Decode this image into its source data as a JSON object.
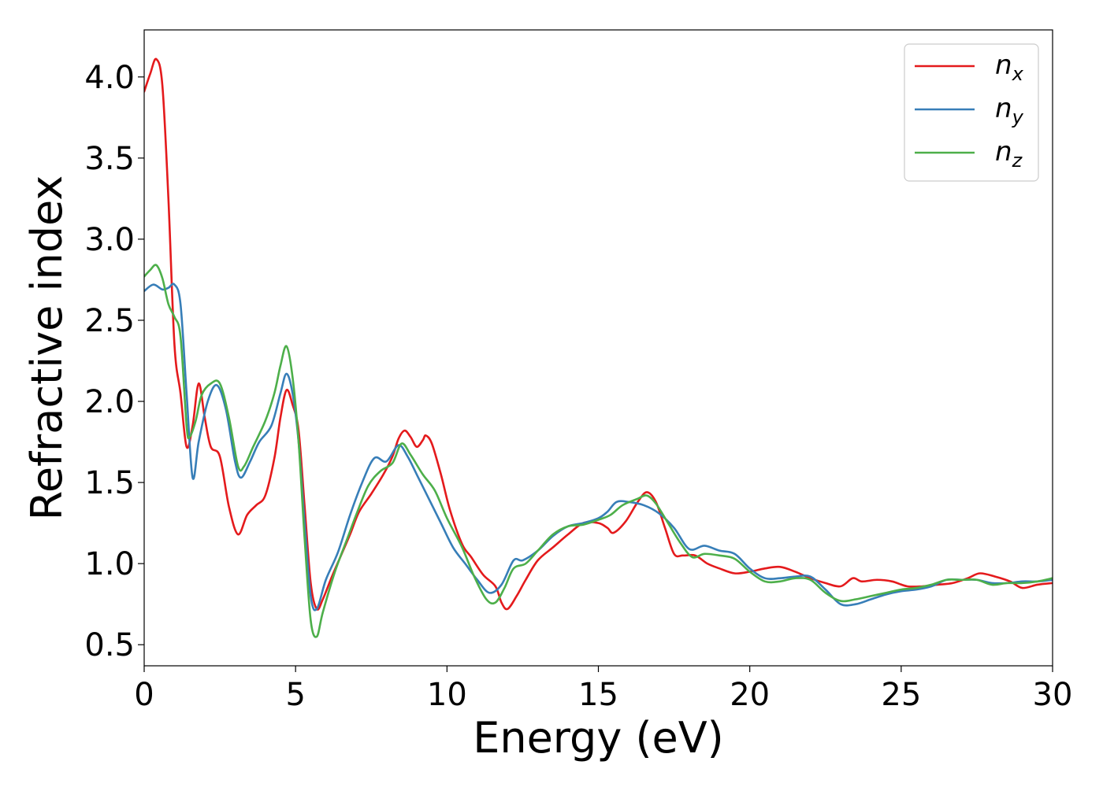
{
  "chart_data": {
    "type": "line",
    "title": "",
    "xlabel": "Energy (eV)",
    "ylabel": "Refractive index",
    "xlim": [
      0,
      30
    ],
    "ylim": [
      0.37,
      4.29
    ],
    "xticks": [
      0,
      5,
      10,
      15,
      20,
      25,
      30
    ],
    "xtick_labels": [
      "0",
      "5",
      "10",
      "15",
      "20",
      "25",
      "30"
    ],
    "yticks": [
      0.5,
      1.0,
      1.5,
      2.0,
      2.5,
      3.0,
      3.5,
      4.0
    ],
    "ytick_labels": [
      "0.5",
      "1.0",
      "1.5",
      "2.0",
      "2.5",
      "3.0",
      "3.5",
      "4.0"
    ],
    "grid": false,
    "legend_position": "top-right",
    "series": [
      {
        "name": "n",
        "subscript": "x",
        "color": "#e41a1c",
        "points": [
          [
            0.0,
            3.91
          ],
          [
            0.2,
            4.02
          ],
          [
            0.4,
            4.11
          ],
          [
            0.6,
            3.95
          ],
          [
            0.8,
            3.25
          ],
          [
            1.0,
            2.35
          ],
          [
            1.2,
            2.05
          ],
          [
            1.4,
            1.72
          ],
          [
            1.6,
            1.85
          ],
          [
            1.8,
            2.11
          ],
          [
            2.0,
            1.9
          ],
          [
            2.2,
            1.72
          ],
          [
            2.5,
            1.66
          ],
          [
            2.8,
            1.35
          ],
          [
            3.1,
            1.18
          ],
          [
            3.4,
            1.3
          ],
          [
            3.7,
            1.36
          ],
          [
            4.0,
            1.42
          ],
          [
            4.3,
            1.65
          ],
          [
            4.5,
            1.9
          ],
          [
            4.7,
            2.07
          ],
          [
            4.9,
            1.98
          ],
          [
            5.1,
            1.82
          ],
          [
            5.3,
            1.35
          ],
          [
            5.5,
            0.88
          ],
          [
            5.7,
            0.72
          ],
          [
            5.9,
            0.78
          ],
          [
            6.2,
            0.92
          ],
          [
            6.5,
            1.05
          ],
          [
            6.8,
            1.18
          ],
          [
            7.1,
            1.32
          ],
          [
            7.5,
            1.43
          ],
          [
            7.9,
            1.55
          ],
          [
            8.2,
            1.66
          ],
          [
            8.4,
            1.77
          ],
          [
            8.6,
            1.82
          ],
          [
            8.8,
            1.78
          ],
          [
            9.0,
            1.72
          ],
          [
            9.2,
            1.76
          ],
          [
            9.3,
            1.79
          ],
          [
            9.5,
            1.74
          ],
          [
            9.8,
            1.55
          ],
          [
            10.1,
            1.33
          ],
          [
            10.5,
            1.12
          ],
          [
            10.8,
            1.04
          ],
          [
            11.2,
            0.93
          ],
          [
            11.6,
            0.86
          ],
          [
            11.8,
            0.76
          ],
          [
            12.0,
            0.72
          ],
          [
            12.3,
            0.8
          ],
          [
            12.6,
            0.9
          ],
          [
            13.0,
            1.02
          ],
          [
            13.5,
            1.1
          ],
          [
            14.0,
            1.18
          ],
          [
            14.5,
            1.25
          ],
          [
            15.0,
            1.25
          ],
          [
            15.3,
            1.22
          ],
          [
            15.5,
            1.19
          ],
          [
            15.9,
            1.26
          ],
          [
            16.3,
            1.38
          ],
          [
            16.6,
            1.44
          ],
          [
            16.9,
            1.38
          ],
          [
            17.2,
            1.22
          ],
          [
            17.5,
            1.06
          ],
          [
            17.8,
            1.05
          ],
          [
            18.2,
            1.05
          ],
          [
            18.6,
            1.0
          ],
          [
            19.0,
            0.97
          ],
          [
            19.5,
            0.94
          ],
          [
            20.0,
            0.95
          ],
          [
            20.5,
            0.97
          ],
          [
            21.0,
            0.98
          ],
          [
            21.5,
            0.95
          ],
          [
            22.0,
            0.91
          ],
          [
            22.5,
            0.88
          ],
          [
            23.0,
            0.86
          ],
          [
            23.4,
            0.91
          ],
          [
            23.7,
            0.89
          ],
          [
            24.2,
            0.9
          ],
          [
            24.7,
            0.89
          ],
          [
            25.2,
            0.86
          ],
          [
            25.7,
            0.86
          ],
          [
            26.2,
            0.87
          ],
          [
            26.7,
            0.88
          ],
          [
            27.2,
            0.91
          ],
          [
            27.6,
            0.94
          ],
          [
            28.1,
            0.92
          ],
          [
            28.6,
            0.89
          ],
          [
            29.0,
            0.85
          ],
          [
            29.5,
            0.87
          ],
          [
            30.0,
            0.88
          ]
        ]
      },
      {
        "name": "n",
        "subscript": "y",
        "color": "#377eb8",
        "points": [
          [
            0.0,
            2.68
          ],
          [
            0.3,
            2.72
          ],
          [
            0.6,
            2.69
          ],
          [
            0.8,
            2.7
          ],
          [
            1.0,
            2.72
          ],
          [
            1.2,
            2.6
          ],
          [
            1.4,
            2.05
          ],
          [
            1.6,
            1.53
          ],
          [
            1.8,
            1.75
          ],
          [
            2.1,
            2.0
          ],
          [
            2.4,
            2.1
          ],
          [
            2.7,
            1.95
          ],
          [
            3.0,
            1.63
          ],
          [
            3.2,
            1.53
          ],
          [
            3.5,
            1.63
          ],
          [
            3.8,
            1.75
          ],
          [
            4.2,
            1.85
          ],
          [
            4.5,
            2.05
          ],
          [
            4.7,
            2.17
          ],
          [
            4.9,
            2.05
          ],
          [
            5.1,
            1.75
          ],
          [
            5.3,
            1.25
          ],
          [
            5.5,
            0.8
          ],
          [
            5.7,
            0.72
          ],
          [
            6.0,
            0.9
          ],
          [
            6.4,
            1.07
          ],
          [
            6.8,
            1.3
          ],
          [
            7.2,
            1.5
          ],
          [
            7.6,
            1.65
          ],
          [
            8.0,
            1.63
          ],
          [
            8.4,
            1.73
          ],
          [
            8.7,
            1.66
          ],
          [
            9.0,
            1.55
          ],
          [
            9.4,
            1.4
          ],
          [
            9.8,
            1.25
          ],
          [
            10.2,
            1.1
          ],
          [
            10.6,
            1.0
          ],
          [
            11.0,
            0.9
          ],
          [
            11.4,
            0.82
          ],
          [
            11.8,
            0.87
          ],
          [
            12.2,
            1.02
          ],
          [
            12.5,
            1.02
          ],
          [
            13.0,
            1.08
          ],
          [
            13.5,
            1.17
          ],
          [
            14.0,
            1.23
          ],
          [
            14.5,
            1.25
          ],
          [
            15.0,
            1.28
          ],
          [
            15.3,
            1.32
          ],
          [
            15.6,
            1.38
          ],
          [
            16.0,
            1.38
          ],
          [
            16.5,
            1.36
          ],
          [
            17.0,
            1.31
          ],
          [
            17.5,
            1.22
          ],
          [
            18.0,
            1.09
          ],
          [
            18.5,
            1.11
          ],
          [
            19.0,
            1.08
          ],
          [
            19.5,
            1.06
          ],
          [
            20.0,
            0.97
          ],
          [
            20.5,
            0.91
          ],
          [
            21.0,
            0.91
          ],
          [
            21.5,
            0.92
          ],
          [
            22.0,
            0.92
          ],
          [
            22.5,
            0.84
          ],
          [
            23.0,
            0.75
          ],
          [
            23.5,
            0.75
          ],
          [
            24.0,
            0.78
          ],
          [
            24.5,
            0.81
          ],
          [
            25.0,
            0.83
          ],
          [
            25.5,
            0.84
          ],
          [
            26.0,
            0.86
          ],
          [
            26.5,
            0.9
          ],
          [
            27.0,
            0.9
          ],
          [
            27.5,
            0.9
          ],
          [
            28.0,
            0.88
          ],
          [
            28.5,
            0.88
          ],
          [
            29.0,
            0.89
          ],
          [
            29.5,
            0.89
          ],
          [
            30.0,
            0.9
          ]
        ]
      },
      {
        "name": "n",
        "subscript": "z",
        "color": "#4daf4a",
        "points": [
          [
            0.0,
            2.77
          ],
          [
            0.2,
            2.81
          ],
          [
            0.4,
            2.84
          ],
          [
            0.6,
            2.76
          ],
          [
            0.8,
            2.6
          ],
          [
            1.0,
            2.52
          ],
          [
            1.2,
            2.4
          ],
          [
            1.4,
            1.85
          ],
          [
            1.5,
            1.78
          ],
          [
            1.7,
            1.88
          ],
          [
            1.9,
            2.04
          ],
          [
            2.2,
            2.11
          ],
          [
            2.5,
            2.11
          ],
          [
            2.8,
            1.9
          ],
          [
            3.1,
            1.6
          ],
          [
            3.3,
            1.6
          ],
          [
            3.6,
            1.72
          ],
          [
            4.0,
            1.88
          ],
          [
            4.3,
            2.05
          ],
          [
            4.5,
            2.22
          ],
          [
            4.7,
            2.34
          ],
          [
            4.9,
            2.15
          ],
          [
            5.1,
            1.75
          ],
          [
            5.3,
            1.15
          ],
          [
            5.5,
            0.65
          ],
          [
            5.7,
            0.55
          ],
          [
            5.9,
            0.7
          ],
          [
            6.3,
            0.95
          ],
          [
            6.7,
            1.15
          ],
          [
            7.0,
            1.3
          ],
          [
            7.4,
            1.48
          ],
          [
            7.8,
            1.57
          ],
          [
            8.2,
            1.62
          ],
          [
            8.5,
            1.74
          ],
          [
            8.8,
            1.67
          ],
          [
            9.2,
            1.55
          ],
          [
            9.6,
            1.45
          ],
          [
            10.0,
            1.28
          ],
          [
            10.5,
            1.1
          ],
          [
            10.9,
            0.92
          ],
          [
            11.3,
            0.78
          ],
          [
            11.6,
            0.76
          ],
          [
            11.9,
            0.85
          ],
          [
            12.2,
            0.97
          ],
          [
            12.6,
            1.0
          ],
          [
            13.0,
            1.08
          ],
          [
            13.5,
            1.18
          ],
          [
            14.0,
            1.23
          ],
          [
            14.5,
            1.24
          ],
          [
            15.0,
            1.27
          ],
          [
            15.4,
            1.3
          ],
          [
            15.8,
            1.36
          ],
          [
            16.3,
            1.4
          ],
          [
            16.6,
            1.42
          ],
          [
            16.9,
            1.37
          ],
          [
            17.3,
            1.25
          ],
          [
            17.7,
            1.13
          ],
          [
            18.1,
            1.04
          ],
          [
            18.5,
            1.06
          ],
          [
            19.0,
            1.05
          ],
          [
            19.5,
            1.03
          ],
          [
            20.0,
            0.95
          ],
          [
            20.5,
            0.89
          ],
          [
            21.0,
            0.89
          ],
          [
            21.5,
            0.91
          ],
          [
            22.0,
            0.9
          ],
          [
            22.5,
            0.82
          ],
          [
            23.0,
            0.77
          ],
          [
            23.5,
            0.78
          ],
          [
            24.0,
            0.8
          ],
          [
            24.5,
            0.82
          ],
          [
            25.0,
            0.84
          ],
          [
            25.5,
            0.85
          ],
          [
            26.0,
            0.87
          ],
          [
            26.5,
            0.9
          ],
          [
            27.0,
            0.9
          ],
          [
            27.5,
            0.9
          ],
          [
            28.0,
            0.87
          ],
          [
            28.5,
            0.88
          ],
          [
            29.0,
            0.88
          ],
          [
            29.5,
            0.89
          ],
          [
            30.0,
            0.91
          ]
        ]
      }
    ]
  }
}
